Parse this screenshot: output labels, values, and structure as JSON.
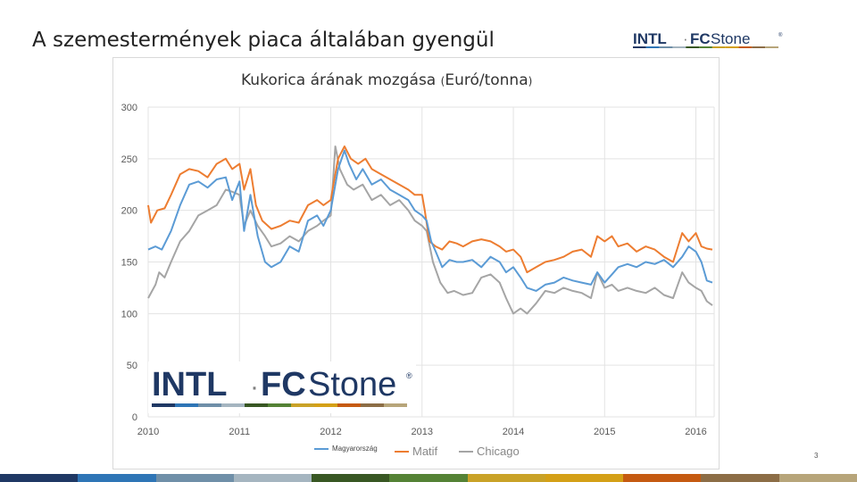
{
  "slide": {
    "title": "A szemestermények piaca általában gyengül",
    "page_number": "3"
  },
  "logo": {
    "word1": "INTL",
    "separator": "·",
    "word2_bold": "FC",
    "word2_rest": "Stone",
    "mark": "®",
    "stripe_colors": [
      "#1f3864",
      "#2e75b6",
      "#6f8fa8",
      "#a5b5c0",
      "#385723",
      "#548235",
      "#c9a227",
      "#d4a017",
      "#c55a11",
      "#8c6d46",
      "#b7a57a"
    ]
  },
  "bottom_bar_colors": [
    "#1f3864",
    "#2e75b6",
    "#6f8fa8",
    "#a5b5c0",
    "#385723",
    "#548235",
    "#c9a227",
    "#d4a017",
    "#c55a11",
    "#8c6d46",
    "#b7a57a"
  ],
  "chart_data": {
    "type": "line",
    "title": "Kukorica árának mozgása",
    "title_unit_open": "(",
    "title_unit": "Euró/tonna",
    "title_unit_close": ")",
    "xlabel": "",
    "ylabel": "",
    "xlim": [
      2010.0,
      2016.2
    ],
    "ylim": [
      0,
      300
    ],
    "yticks": [
      0,
      50,
      100,
      150,
      200,
      250,
      300
    ],
    "xticks": [
      2010,
      2011,
      2012,
      2013,
      2014,
      2015,
      2016
    ],
    "grid": true,
    "legend_position": "bottom",
    "series": [
      {
        "name": "Magyarország",
        "color": "#5b9bd5",
        "points": [
          [
            2010.0,
            162
          ],
          [
            2010.08,
            165
          ],
          [
            2010.15,
            162
          ],
          [
            2010.25,
            180
          ],
          [
            2010.35,
            205
          ],
          [
            2010.45,
            225
          ],
          [
            2010.55,
            228
          ],
          [
            2010.65,
            222
          ],
          [
            2010.75,
            230
          ],
          [
            2010.85,
            232
          ],
          [
            2010.92,
            210
          ],
          [
            2011.0,
            228
          ],
          [
            2011.05,
            180
          ],
          [
            2011.12,
            215
          ],
          [
            2011.2,
            175
          ],
          [
            2011.28,
            150
          ],
          [
            2011.35,
            145
          ],
          [
            2011.45,
            150
          ],
          [
            2011.55,
            165
          ],
          [
            2011.65,
            160
          ],
          [
            2011.75,
            190
          ],
          [
            2011.85,
            195
          ],
          [
            2011.92,
            185
          ],
          [
            2012.0,
            200
          ],
          [
            2012.08,
            240
          ],
          [
            2012.15,
            258
          ],
          [
            2012.2,
            245
          ],
          [
            2012.28,
            230
          ],
          [
            2012.35,
            240
          ],
          [
            2012.45,
            225
          ],
          [
            2012.55,
            230
          ],
          [
            2012.65,
            220
          ],
          [
            2012.75,
            215
          ],
          [
            2012.85,
            210
          ],
          [
            2012.92,
            200
          ],
          [
            2013.0,
            195
          ],
          [
            2013.05,
            190
          ],
          [
            2013.1,
            170
          ],
          [
            2013.15,
            160
          ],
          [
            2013.22,
            145
          ],
          [
            2013.3,
            152
          ],
          [
            2013.38,
            150
          ],
          [
            2013.45,
            150
          ],
          [
            2013.55,
            152
          ],
          [
            2013.65,
            145
          ],
          [
            2013.75,
            155
          ],
          [
            2013.85,
            150
          ],
          [
            2013.92,
            140
          ],
          [
            2014.0,
            145
          ],
          [
            2014.08,
            135
          ],
          [
            2014.15,
            125
          ],
          [
            2014.25,
            122
          ],
          [
            2014.35,
            128
          ],
          [
            2014.45,
            130
          ],
          [
            2014.55,
            135
          ],
          [
            2014.65,
            132
          ],
          [
            2014.75,
            130
          ],
          [
            2014.85,
            128
          ],
          [
            2014.92,
            140
          ],
          [
            2015.0,
            130
          ],
          [
            2015.08,
            138
          ],
          [
            2015.15,
            145
          ],
          [
            2015.25,
            148
          ],
          [
            2015.35,
            145
          ],
          [
            2015.45,
            150
          ],
          [
            2015.55,
            148
          ],
          [
            2015.65,
            152
          ],
          [
            2015.75,
            145
          ],
          [
            2015.85,
            155
          ],
          [
            2015.92,
            165
          ],
          [
            2016.0,
            160
          ],
          [
            2016.06,
            150
          ],
          [
            2016.12,
            132
          ],
          [
            2016.18,
            130
          ]
        ]
      },
      {
        "name": "Matif",
        "color": "#ed7d31",
        "points": [
          [
            2010.0,
            205
          ],
          [
            2010.03,
            188
          ],
          [
            2010.1,
            200
          ],
          [
            2010.18,
            202
          ],
          [
            2010.25,
            215
          ],
          [
            2010.35,
            235
          ],
          [
            2010.45,
            240
          ],
          [
            2010.55,
            238
          ],
          [
            2010.65,
            232
          ],
          [
            2010.75,
            245
          ],
          [
            2010.85,
            250
          ],
          [
            2010.92,
            240
          ],
          [
            2011.0,
            245
          ],
          [
            2011.05,
            220
          ],
          [
            2011.12,
            240
          ],
          [
            2011.18,
            205
          ],
          [
            2011.25,
            190
          ],
          [
            2011.35,
            182
          ],
          [
            2011.45,
            185
          ],
          [
            2011.55,
            190
          ],
          [
            2011.65,
            188
          ],
          [
            2011.75,
            205
          ],
          [
            2011.85,
            210
          ],
          [
            2011.92,
            205
          ],
          [
            2012.0,
            210
          ],
          [
            2012.08,
            250
          ],
          [
            2012.15,
            262
          ],
          [
            2012.22,
            250
          ],
          [
            2012.3,
            245
          ],
          [
            2012.38,
            250
          ],
          [
            2012.45,
            240
          ],
          [
            2012.55,
            235
          ],
          [
            2012.65,
            230
          ],
          [
            2012.75,
            225
          ],
          [
            2012.85,
            220
          ],
          [
            2012.92,
            215
          ],
          [
            2013.0,
            215
          ],
          [
            2013.03,
            200
          ],
          [
            2013.08,
            170
          ],
          [
            2013.15,
            165
          ],
          [
            2013.22,
            162
          ],
          [
            2013.3,
            170
          ],
          [
            2013.38,
            168
          ],
          [
            2013.45,
            165
          ],
          [
            2013.55,
            170
          ],
          [
            2013.65,
            172
          ],
          [
            2013.75,
            170
          ],
          [
            2013.85,
            165
          ],
          [
            2013.92,
            160
          ],
          [
            2014.0,
            162
          ],
          [
            2014.08,
            155
          ],
          [
            2014.15,
            140
          ],
          [
            2014.25,
            145
          ],
          [
            2014.35,
            150
          ],
          [
            2014.45,
            152
          ],
          [
            2014.55,
            155
          ],
          [
            2014.65,
            160
          ],
          [
            2014.75,
            162
          ],
          [
            2014.85,
            155
          ],
          [
            2014.92,
            175
          ],
          [
            2015.0,
            170
          ],
          [
            2015.08,
            175
          ],
          [
            2015.15,
            165
          ],
          [
            2015.25,
            168
          ],
          [
            2015.35,
            160
          ],
          [
            2015.45,
            165
          ],
          [
            2015.55,
            162
          ],
          [
            2015.65,
            155
          ],
          [
            2015.75,
            150
          ],
          [
            2015.85,
            178
          ],
          [
            2015.92,
            170
          ],
          [
            2016.0,
            178
          ],
          [
            2016.06,
            165
          ],
          [
            2016.12,
            163
          ],
          [
            2016.18,
            162
          ]
        ]
      },
      {
        "name": "Chicago",
        "color": "#a5a5a5",
        "points": [
          [
            2010.0,
            115
          ],
          [
            2010.08,
            128
          ],
          [
            2010.12,
            140
          ],
          [
            2010.18,
            135
          ],
          [
            2010.25,
            150
          ],
          [
            2010.35,
            170
          ],
          [
            2010.45,
            180
          ],
          [
            2010.55,
            195
          ],
          [
            2010.65,
            200
          ],
          [
            2010.75,
            205
          ],
          [
            2010.85,
            220
          ],
          [
            2010.92,
            218
          ],
          [
            2011.0,
            215
          ],
          [
            2011.05,
            185
          ],
          [
            2011.12,
            200
          ],
          [
            2011.2,
            185
          ],
          [
            2011.28,
            175
          ],
          [
            2011.35,
            165
          ],
          [
            2011.45,
            168
          ],
          [
            2011.55,
            175
          ],
          [
            2011.65,
            170
          ],
          [
            2011.75,
            180
          ],
          [
            2011.85,
            185
          ],
          [
            2011.92,
            190
          ],
          [
            2012.0,
            195
          ],
          [
            2012.05,
            262
          ],
          [
            2012.1,
            240
          ],
          [
            2012.18,
            225
          ],
          [
            2012.25,
            220
          ],
          [
            2012.35,
            225
          ],
          [
            2012.45,
            210
          ],
          [
            2012.55,
            215
          ],
          [
            2012.65,
            205
          ],
          [
            2012.75,
            210
          ],
          [
            2012.85,
            200
          ],
          [
            2012.92,
            190
          ],
          [
            2013.0,
            185
          ],
          [
            2013.05,
            180
          ],
          [
            2013.12,
            150
          ],
          [
            2013.2,
            130
          ],
          [
            2013.28,
            120
          ],
          [
            2013.35,
            122
          ],
          [
            2013.45,
            118
          ],
          [
            2013.55,
            120
          ],
          [
            2013.65,
            135
          ],
          [
            2013.75,
            138
          ],
          [
            2013.85,
            130
          ],
          [
            2013.92,
            115
          ],
          [
            2014.0,
            100
          ],
          [
            2014.08,
            105
          ],
          [
            2014.15,
            100
          ],
          [
            2014.25,
            110
          ],
          [
            2014.35,
            122
          ],
          [
            2014.45,
            120
          ],
          [
            2014.55,
            125
          ],
          [
            2014.65,
            122
          ],
          [
            2014.75,
            120
          ],
          [
            2014.85,
            115
          ],
          [
            2014.92,
            140
          ],
          [
            2015.0,
            125
          ],
          [
            2015.08,
            128
          ],
          [
            2015.15,
            122
          ],
          [
            2015.25,
            125
          ],
          [
            2015.35,
            122
          ],
          [
            2015.45,
            120
          ],
          [
            2015.55,
            125
          ],
          [
            2015.65,
            118
          ],
          [
            2015.75,
            115
          ],
          [
            2015.85,
            140
          ],
          [
            2015.92,
            130
          ],
          [
            2016.0,
            125
          ],
          [
            2016.06,
            122
          ],
          [
            2016.12,
            112
          ],
          [
            2016.18,
            108
          ]
        ]
      }
    ]
  }
}
